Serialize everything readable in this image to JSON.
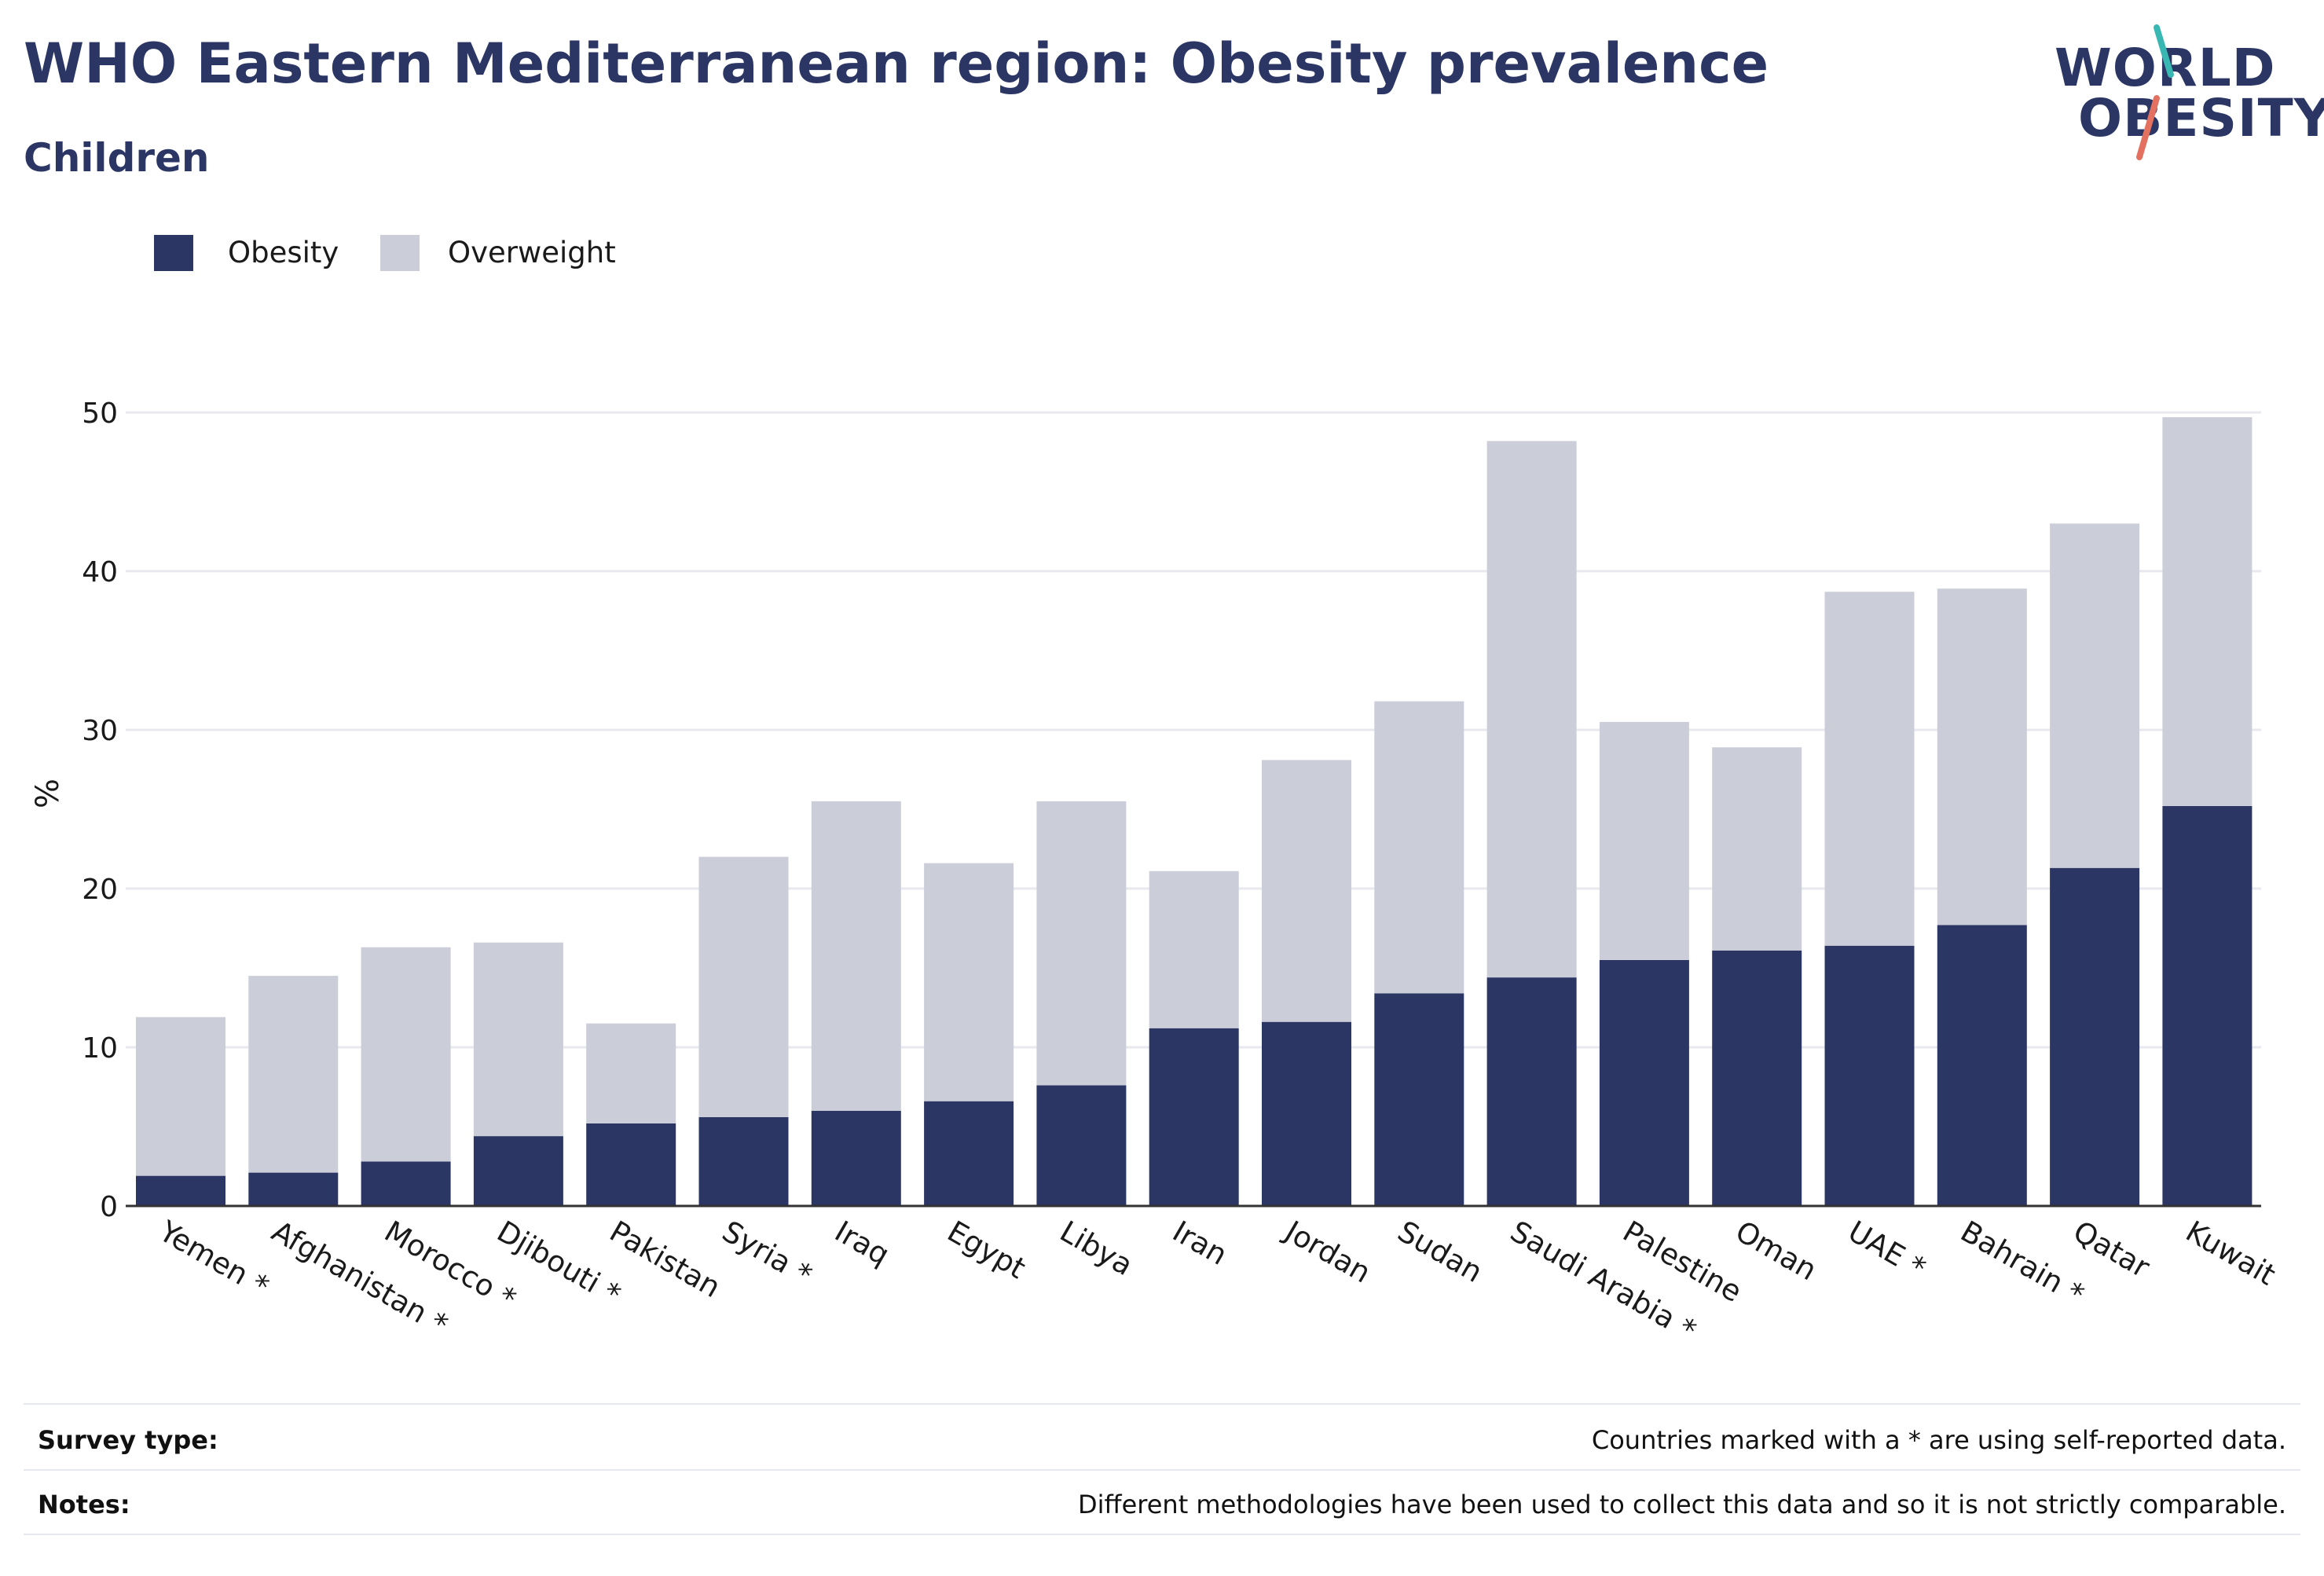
{
  "title": "WHO Eastern Mediterranean region: Obesity prevalence",
  "subtitle": "Children",
  "logo": {
    "line1": "WORLD",
    "line2": "OBESITY"
  },
  "legend": [
    {
      "label": "Obesity",
      "color": "#2b3664"
    },
    {
      "label": "Overweight",
      "color": "#cbcdd9"
    }
  ],
  "chart_data": {
    "type": "bar",
    "stacked": true,
    "categories": [
      "Yemen *",
      "Afghanistan *",
      "Morocco *",
      "Djibouti *",
      "Pakistan",
      "Syria *",
      "Iraq",
      "Egypt",
      "Libya",
      "Iran",
      "Jordan",
      "Sudan",
      "Saudi Arabia *",
      "Palestine",
      "Oman",
      "UAE *",
      "Bahrain *",
      "Qatar",
      "Kuwait"
    ],
    "series": [
      {
        "name": "Obesity",
        "color": "#2b3664",
        "values": [
          1.9,
          2.1,
          2.8,
          4.4,
          5.2,
          5.6,
          6.0,
          6.6,
          7.6,
          11.2,
          11.6,
          13.4,
          14.4,
          15.5,
          16.1,
          16.4,
          17.7,
          21.3,
          25.2
        ]
      },
      {
        "name": "Overweight",
        "color": "#cbcdd9",
        "values": [
          10.0,
          12.4,
          13.5,
          12.2,
          6.3,
          16.4,
          19.5,
          15.0,
          17.9,
          9.9,
          16.5,
          18.4,
          33.8,
          15.0,
          12.8,
          22.3,
          21.2,
          21.7,
          24.5
        ]
      }
    ],
    "ylabel": "%",
    "xlabel": "",
    "ylim": [
      0,
      52
    ],
    "yticks": [
      0,
      10,
      20,
      30,
      40,
      50
    ],
    "grid": true,
    "legend_position": "top-left"
  },
  "footer": [
    {
      "key": "Survey type:",
      "value": "Countries marked with a * are using self-reported data."
    },
    {
      "key": "Notes:",
      "value": "Different methodologies have been used to collect this data and so it is not strictly comparable."
    }
  ]
}
